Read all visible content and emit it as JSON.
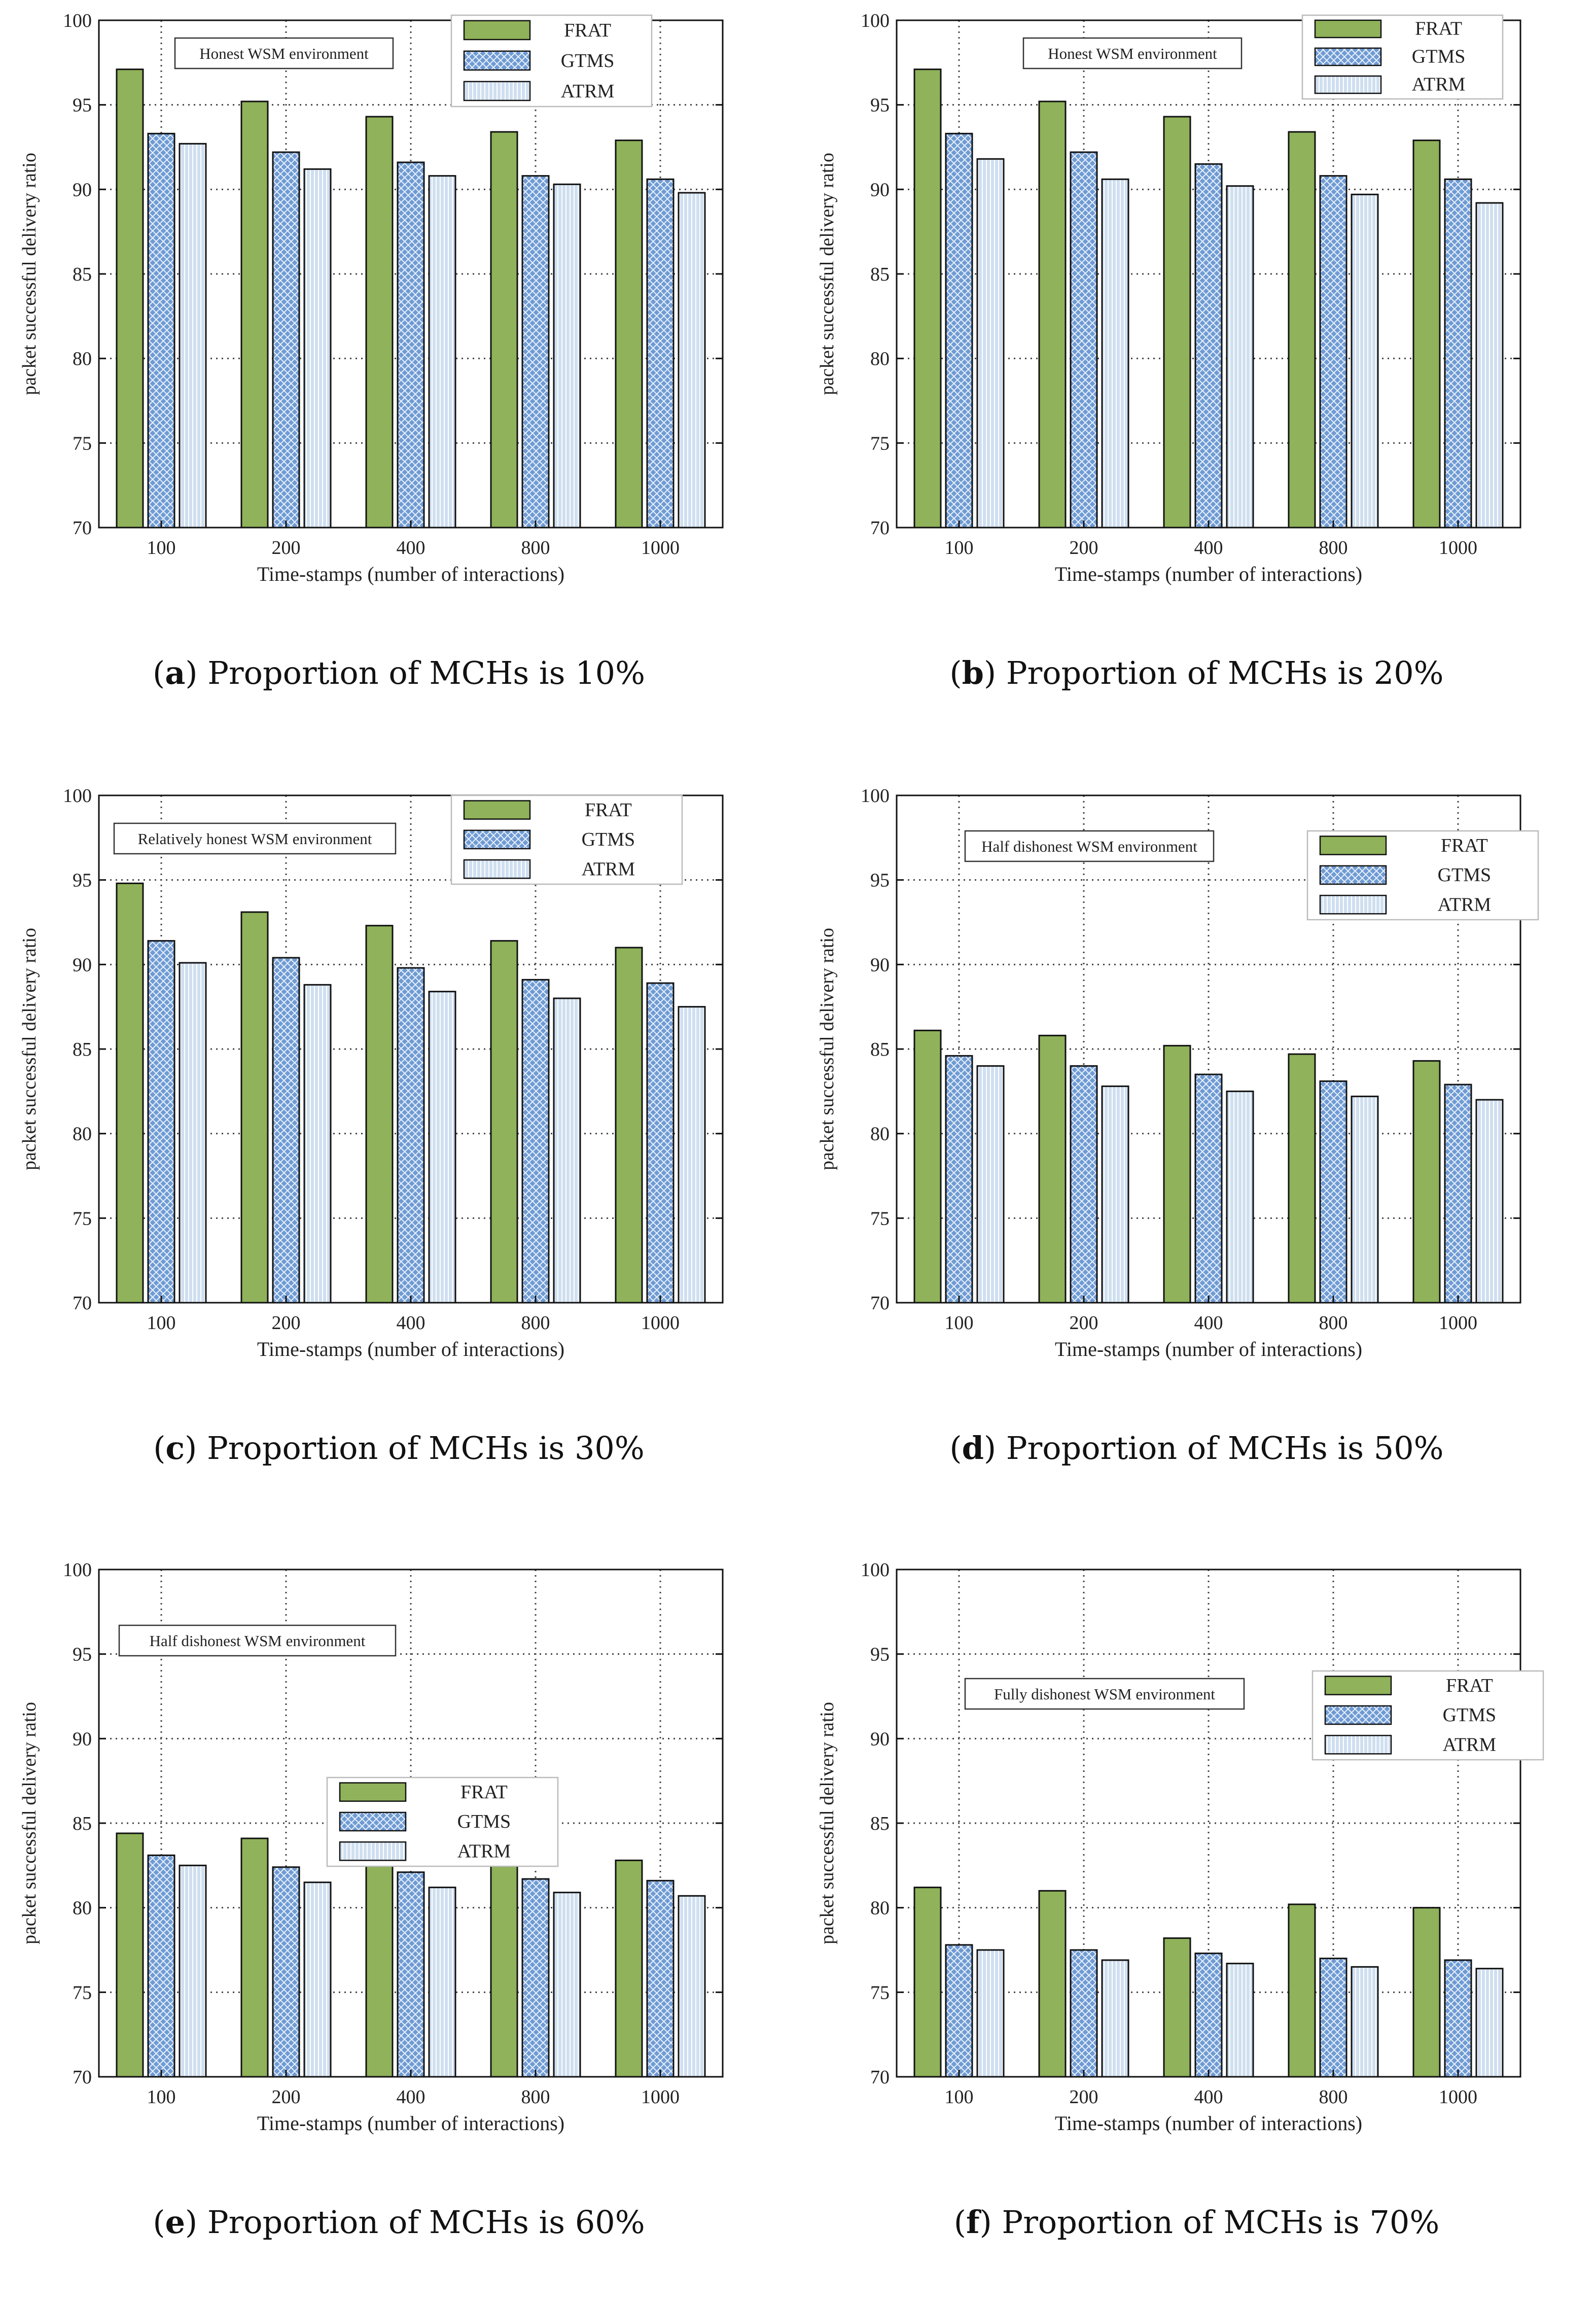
{
  "palette": {
    "FRAT": "#8fb25a",
    "GTMS": "#6f9bd3",
    "ATRM": "#cfdff0",
    "grid": "#444444"
  },
  "chart_data": [
    {
      "type": "bar",
      "panel_letter": "a",
      "caption": "Proportion of MCHs is 10%",
      "annotation": "Honest WSM environment",
      "legend_position": "top-right",
      "categories": [
        "100",
        "200",
        "400",
        "800",
        "1000"
      ],
      "series": [
        {
          "name": "FRAT",
          "values": [
            97.1,
            95.2,
            94.3,
            93.4,
            92.9
          ]
        },
        {
          "name": "GTMS",
          "values": [
            93.3,
            92.2,
            91.6,
            90.8,
            90.6
          ]
        },
        {
          "name": "ATRM",
          "values": [
            92.7,
            91.2,
            90.8,
            90.3,
            89.8
          ]
        }
      ],
      "xlabel": "Time-stamps (number of interactions)",
      "ylabel": "packet successful delivery ratio",
      "ylim": [
        70,
        100
      ],
      "yticks": [
        70,
        75,
        80,
        85,
        90,
        95,
        100
      ]
    },
    {
      "type": "bar",
      "panel_letter": "b",
      "caption": "Proportion of MCHs is 20%",
      "annotation": "Honest WSM environment",
      "legend_position": "top-right",
      "categories": [
        "100",
        "200",
        "400",
        "800",
        "1000"
      ],
      "series": [
        {
          "name": "FRAT",
          "values": [
            97.1,
            95.2,
            94.3,
            93.4,
            92.9
          ]
        },
        {
          "name": "GTMS",
          "values": [
            93.3,
            92.2,
            91.5,
            90.8,
            90.6
          ]
        },
        {
          "name": "ATRM",
          "values": [
            91.8,
            90.6,
            90.2,
            89.7,
            89.2
          ]
        }
      ],
      "xlabel": "Time-stamps (number of interactions)",
      "ylabel": "packet successful delivery ratio",
      "ylim": [
        70,
        100
      ],
      "yticks": [
        70,
        75,
        80,
        85,
        90,
        95,
        100
      ]
    },
    {
      "type": "bar",
      "panel_letter": "c",
      "caption": "Proportion of MCHs is 30%",
      "annotation": "Relatively honest WSM environment",
      "legend_position": "top-right",
      "categories": [
        "100",
        "200",
        "400",
        "800",
        "1000"
      ],
      "series": [
        {
          "name": "FRAT",
          "values": [
            94.8,
            93.1,
            92.3,
            91.4,
            91.0
          ]
        },
        {
          "name": "GTMS",
          "values": [
            91.4,
            90.4,
            89.8,
            89.1,
            88.9
          ]
        },
        {
          "name": "ATRM",
          "values": [
            90.1,
            88.8,
            88.4,
            88.0,
            87.5
          ]
        }
      ],
      "xlabel": "Time-stamps (number of interactions)",
      "ylabel": "packet successful delivery ratio",
      "ylim": [
        70,
        100
      ],
      "yticks": [
        70,
        75,
        80,
        85,
        90,
        95,
        100
      ]
    },
    {
      "type": "bar",
      "panel_letter": "d",
      "caption": "Proportion of MCHs is 50%",
      "annotation": "Half dishonest WSM environment",
      "legend_position": "top-right",
      "categories": [
        "100",
        "200",
        "400",
        "800",
        "1000"
      ],
      "series": [
        {
          "name": "FRAT",
          "values": [
            86.1,
            85.8,
            85.2,
            84.7,
            84.3
          ]
        },
        {
          "name": "GTMS",
          "values": [
            84.6,
            84.0,
            83.5,
            83.1,
            82.9
          ]
        },
        {
          "name": "ATRM",
          "values": [
            84.0,
            82.8,
            82.5,
            82.2,
            82.0
          ]
        }
      ],
      "xlabel": "Time-stamps (number of interactions)",
      "ylabel": "packet successful delivery ratio",
      "ylim": [
        70,
        100
      ],
      "yticks": [
        70,
        75,
        80,
        85,
        90,
        95,
        100
      ]
    },
    {
      "type": "bar",
      "panel_letter": "e",
      "caption": "Proportion of MCHs is 60%",
      "annotation": "Half dishonest WSM environment",
      "legend_position": "center-right",
      "categories": [
        "100",
        "200",
        "400",
        "800",
        "1000"
      ],
      "series": [
        {
          "name": "FRAT",
          "values": [
            84.4,
            84.1,
            83.6,
            83.1,
            82.8
          ]
        },
        {
          "name": "GTMS",
          "values": [
            83.1,
            82.4,
            82.1,
            81.7,
            81.6
          ]
        },
        {
          "name": "ATRM",
          "values": [
            82.5,
            81.5,
            81.2,
            80.9,
            80.7
          ]
        }
      ],
      "xlabel": "Time-stamps (number of interactions)",
      "ylabel": "packet successful delivery ratio",
      "ylim": [
        70,
        100
      ],
      "yticks": [
        70,
        75,
        80,
        85,
        90,
        95,
        100
      ]
    },
    {
      "type": "bar",
      "panel_letter": "f",
      "caption": "Proportion of MCHs is 70%",
      "annotation": "Fully dishonest WSM environment",
      "legend_position": "top-right",
      "categories": [
        "100",
        "200",
        "400",
        "800",
        "1000"
      ],
      "series": [
        {
          "name": "FRAT",
          "values": [
            81.2,
            81.0,
            78.2,
            80.2,
            80.0
          ]
        },
        {
          "name": "GTMS",
          "values": [
            77.8,
            77.5,
            77.3,
            77.0,
            76.9
          ]
        },
        {
          "name": "ATRM",
          "values": [
            77.5,
            76.9,
            76.7,
            76.5,
            76.4
          ]
        }
      ],
      "xlabel": "Time-stamps (number of interactions)",
      "ylabel": "packet successful delivery ratio",
      "ylim": [
        70,
        100
      ],
      "yticks": [
        70,
        75,
        80,
        85,
        90,
        95,
        100
      ]
    }
  ]
}
